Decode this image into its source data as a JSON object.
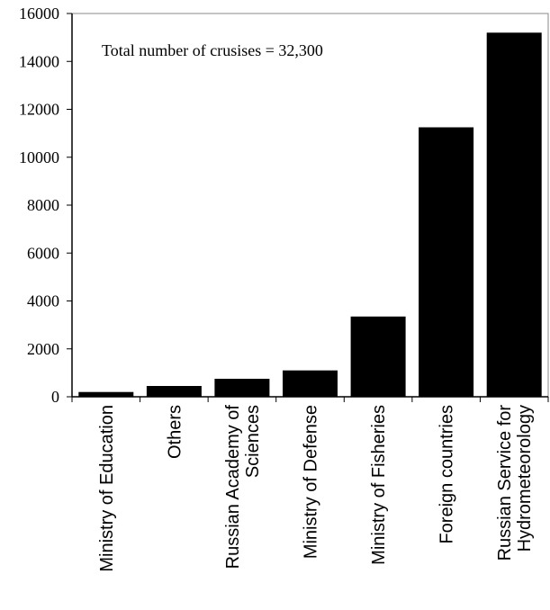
{
  "chart_data": {
    "type": "bar",
    "title": "",
    "xlabel": "",
    "ylabel": "",
    "annotation": "Total number of crusises = 32,300",
    "categories": [
      [
        "Ministry of Education"
      ],
      [
        "Others"
      ],
      [
        "Russian Academy of",
        "Sciences"
      ],
      [
        "Ministry of Defense"
      ],
      [
        "Ministry of Fisheries"
      ],
      [
        "Foreign countries"
      ],
      [
        "Russian Service for",
        "Hydrometeorology"
      ]
    ],
    "values": [
      200,
      450,
      750,
      1100,
      3350,
      11250,
      15200
    ],
    "ylim": [
      0,
      16000
    ],
    "yticks": [
      0,
      2000,
      4000,
      6000,
      8000,
      10000,
      12000,
      14000,
      16000
    ],
    "grid": false,
    "legend": "none",
    "colors": {
      "bar": "#000000",
      "axis": "#000000",
      "frame": "#888888"
    }
  }
}
